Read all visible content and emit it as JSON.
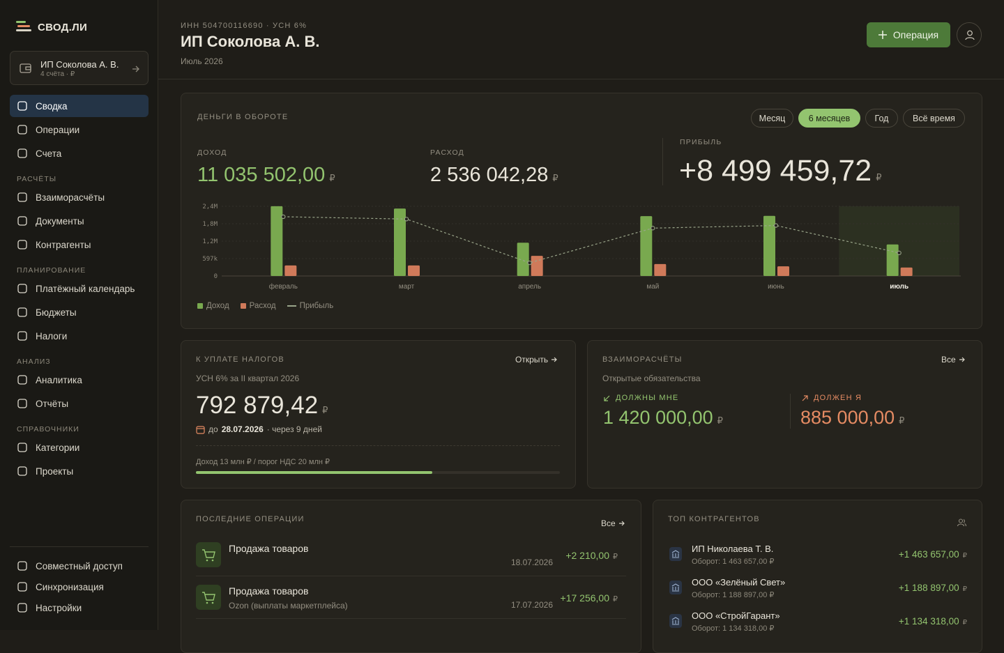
{
  "sidebar": {
    "logo": "СВОД.ЛИ",
    "account": {
      "name": "ИП Соколова А. В.",
      "meta": "4 счёта · ₽"
    },
    "nav": [
      "Сводка",
      "Операции",
      "Счета"
    ],
    "active_nav": 0,
    "sections": [
      {
        "title": "РАСЧЁТЫ",
        "items": [
          "Взаиморасчёты",
          "Документы",
          "Контрагенты"
        ]
      },
      {
        "title": "ПЛАНИРОВАНИЕ",
        "items": [
          "Платёжный календарь",
          "Бюджеты",
          "Налоги"
        ]
      },
      {
        "title": "АНАЛИЗ",
        "items": [
          "Аналитика",
          "Отчёты"
        ]
      },
      {
        "title": "СПРАВОЧНИКИ",
        "items": [
          "Категории",
          "Проекты"
        ]
      }
    ],
    "footer": [
      "Совместный доступ",
      "Синхронизация",
      "Настройки"
    ]
  },
  "header": {
    "meta": "ИНН 504700116690 · УСН 6%",
    "title": "ИП Соколова А. В.",
    "period": "Июль 2026",
    "button": "Операция"
  },
  "currency": "₽",
  "turnover": {
    "title": "ДЕНЬГИ В ОБОРОТЕ",
    "tabs": [
      "Месяц",
      "6 месяцев",
      "Год",
      "Всё время"
    ],
    "active_tab": 1,
    "income": {
      "label": "ДОХОД",
      "amount": "11 035 502,00"
    },
    "expense": {
      "label": "РАСХОД",
      "amount": "2 536 042,28"
    },
    "profit": {
      "label": "ПРИБЫЛЬ",
      "amount": "+8 499 459,72"
    }
  },
  "chart_data": {
    "type": "bar",
    "categories": [
      "февраль",
      "март",
      "апрель",
      "май",
      "июнь",
      "июль"
    ],
    "series": [
      {
        "name": "Доход",
        "color": "#79a94f",
        "values": [
          2390000,
          2310000,
          1140000,
          2050000,
          2060000,
          1080000
        ]
      },
      {
        "name": "Расход",
        "color": "#d07a5a",
        "values": [
          360000,
          360000,
          690000,
          410000,
          330000,
          290000
        ]
      },
      {
        "name": "Прибыль",
        "type": "line",
        "color": "#9aa58a",
        "values": [
          2030000,
          1950000,
          450000,
          1640000,
          1730000,
          790000
        ]
      }
    ],
    "ylim": [
      0,
      2388000
    ],
    "yticks": [
      0,
      {
        "value": 597000,
        "label": "597k"
      },
      {
        "value": 1194000,
        "label": "1,2M"
      },
      {
        "value": 1791000,
        "label": "1,8M"
      },
      {
        "value": 2388000,
        "label": "2,4M"
      }
    ],
    "grid": true
  },
  "taxes": {
    "title": "К УПЛАТЕ НАЛОГОВ",
    "link": "Открыть",
    "subtitle": "УСН 6% за II квартал 2026",
    "amount": "792 879,42",
    "due": {
      "prefix": "до",
      "date": "28.07.2026",
      "suffix": "· через 9 дней"
    },
    "progress_label": "Доход 13 млн ₽ / порог НДС 20 млн ₽",
    "progress": {
      "value": 13,
      "max": 20
    }
  },
  "settlements": {
    "title": "ВЗАИМОРАСЧЁТЫ",
    "link": "Все",
    "subtitle": "Открытые обязательства",
    "owed_to_me": {
      "label": "ДОЛЖНЫ МНЕ",
      "amount": "1 420 000,00"
    },
    "i_owe": {
      "label": "ДОЛЖЕН Я",
      "amount": "885 000,00"
    }
  },
  "operations": {
    "title": "ПОСЛЕДНИЕ ОПЕРАЦИИ",
    "link": "Все",
    "items": [
      {
        "title": "Продажа товаров",
        "date": "18.07.2026",
        "amount": "+2 210,00"
      },
      {
        "title": "Продажа товаров",
        "subtitle": "Ozon (выплаты маркетплейса)",
        "date": "17.07.2026",
        "amount": "+17 256,00"
      }
    ]
  },
  "counterparties": {
    "title": "ТОП КОНТРАГЕНТОВ",
    "items": [
      {
        "name": "ИП Николаева Т. В.",
        "turnover": "Оборот: 1 463 657,00 ₽",
        "amount": "+1 463 657,00"
      },
      {
        "name": "ООО «Зелёный Свет»",
        "turnover": "Оборот: 1 188 897,00 ₽",
        "amount": "+1 188 897,00"
      },
      {
        "name": "ООО «СтройГарант»",
        "turnover": "Оборот: 1 134 318,00 ₽",
        "amount": "+1 134 318,00"
      }
    ]
  }
}
